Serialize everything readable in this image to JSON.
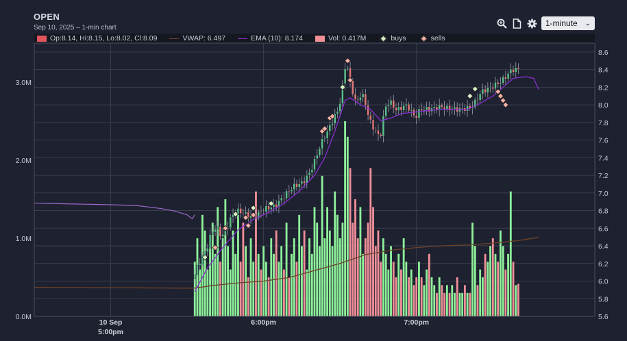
{
  "header": {
    "title": "OPEN",
    "subtitle": "Sep 10, 2025 – 1-min chart"
  },
  "toolbar": {
    "zoom_icon": "magnifier-plus-icon",
    "page_icon": "document-icon",
    "settings_icon": "gear-icon",
    "interval_value": "1-minute",
    "interval_chevron": "⌄"
  },
  "legend": {
    "ohlc": "Op:8.14, Hi:8.15, Lo:8.02, Cl:8.09",
    "vwap": "VWAP: 6.497",
    "ema": "EMA (10): 8.174",
    "vol": "Vol: 0.417M",
    "buys": "buys",
    "sells": "sells"
  },
  "colors": {
    "background": "#1e2130",
    "up": "#5cbd8c",
    "down": "#e0787a",
    "vol_up": "#8ef19a",
    "vol_down": "#f08f98",
    "ema": "#8a2fd0",
    "vwap": "#6e4228",
    "prevol": "#9a6ac8",
    "buy_marker": "#d8f2c8",
    "sell_marker": "#f3b0a6",
    "legend_red": "#e0565c"
  },
  "chart_data": {
    "type": "candlestick",
    "title": "OPEN",
    "subtitle": "Sep 10, 2025 – 1-min chart",
    "interval": "1-minute",
    "price_axis": {
      "side": "right",
      "ylim": [
        5.6,
        8.7
      ],
      "ticks": [
        "8.6",
        "8.4",
        "8.2",
        "8.0",
        "7.8",
        "7.6",
        "7.4",
        "7.2",
        "7.0",
        "6.8",
        "6.6",
        "6.4",
        "6.2",
        "6.0",
        "5.8",
        "5.6"
      ]
    },
    "volume_axis": {
      "side": "left",
      "ylim_millions": [
        0,
        3.5
      ],
      "ticks": [
        "3.0M",
        "2.0M",
        "1.0M",
        "0.0M"
      ]
    },
    "x_axis": {
      "minute_range": [
        -60,
        160
      ],
      "ticks": [
        {
          "minute": -30,
          "label": "10 Sep",
          "label2": "5:00pm"
        },
        {
          "minute": 30,
          "label": "6:00pm",
          "label2": ""
        },
        {
          "minute": 90,
          "label": "7:00pm",
          "label2": ""
        }
      ]
    },
    "grid": true,
    "legend_position": "top-left",
    "premarket_volume": [
      [
        -60,
        1.45
      ],
      [
        -45,
        1.44
      ],
      [
        -30,
        1.43
      ],
      [
        -20,
        1.42
      ],
      [
        -10,
        1.38
      ],
      [
        -5,
        1.35
      ],
      [
        0,
        1.3
      ],
      [
        2,
        1.25
      ],
      [
        3,
        1.3
      ]
    ],
    "price_path": [
      [
        3,
        6.03
      ],
      [
        5,
        6.2
      ],
      [
        8,
        6.35
      ],
      [
        10,
        6.55
      ],
      [
        12,
        6.62
      ],
      [
        14,
        6.5
      ],
      [
        16,
        6.6
      ],
      [
        18,
        6.74
      ],
      [
        20,
        6.8
      ],
      [
        22,
        6.78
      ],
      [
        24,
        6.75
      ],
      [
        26,
        6.72
      ],
      [
        28,
        6.75
      ],
      [
        30,
        6.8
      ],
      [
        32,
        6.83
      ],
      [
        35,
        6.85
      ],
      [
        38,
        6.95
      ],
      [
        42,
        7.07
      ],
      [
        46,
        7.12
      ],
      [
        48,
        7.2
      ],
      [
        50,
        7.32
      ],
      [
        52,
        7.48
      ],
      [
        54,
        7.62
      ],
      [
        56,
        7.72
      ],
      [
        58,
        7.85
      ],
      [
        60,
        7.95
      ],
      [
        62,
        8.3
      ],
      [
        63,
        8.55
      ],
      [
        64,
        8.3
      ],
      [
        66,
        8.1
      ],
      [
        67,
        8.0
      ],
      [
        69,
        8.15
      ],
      [
        71,
        7.95
      ],
      [
        73,
        7.75
      ],
      [
        75,
        7.7
      ],
      [
        76,
        7.58
      ],
      [
        78,
        7.95
      ],
      [
        80,
        8.05
      ],
      [
        82,
        7.95
      ],
      [
        84,
        7.95
      ],
      [
        86,
        8.0
      ],
      [
        88,
        7.95
      ],
      [
        90,
        7.85
      ],
      [
        92,
        7.95
      ],
      [
        96,
        7.95
      ],
      [
        100,
        7.98
      ],
      [
        104,
        7.95
      ],
      [
        108,
        7.95
      ],
      [
        112,
        7.97
      ],
      [
        114,
        8.05
      ],
      [
        116,
        8.15
      ],
      [
        120,
        8.2
      ],
      [
        124,
        8.27
      ],
      [
        128,
        8.4
      ],
      [
        131,
        8.4
      ],
      [
        133,
        8.3
      ],
      [
        135,
        8.2
      ],
      [
        136,
        8.0
      ],
      [
        137,
        7.95
      ],
      [
        138,
        8.09
      ]
    ],
    "ema10": [
      [
        3,
        5.88
      ],
      [
        8,
        6.15
      ],
      [
        14,
        6.38
      ],
      [
        20,
        6.58
      ],
      [
        26,
        6.7
      ],
      [
        32,
        6.78
      ],
      [
        38,
        6.88
      ],
      [
        44,
        7.02
      ],
      [
        50,
        7.2
      ],
      [
        54,
        7.4
      ],
      [
        58,
        7.7
      ],
      [
        62,
        8.05
      ],
      [
        64,
        8.08
      ],
      [
        68,
        8.0
      ],
      [
        72,
        7.95
      ],
      [
        76,
        7.82
      ],
      [
        80,
        7.85
      ],
      [
        84,
        7.9
      ],
      [
        90,
        7.92
      ],
      [
        100,
        7.95
      ],
      [
        110,
        7.95
      ],
      [
        114,
        8.0
      ],
      [
        120,
        8.1
      ],
      [
        128,
        8.3
      ],
      [
        133,
        8.32
      ],
      [
        136,
        8.3
      ],
      [
        138,
        8.174
      ]
    ],
    "vwap": [
      [
        -60,
        5.93
      ],
      [
        0,
        5.92
      ],
      [
        3,
        5.92
      ],
      [
        10,
        5.95
      ],
      [
        20,
        5.98
      ],
      [
        30,
        6.0
      ],
      [
        40,
        6.04
      ],
      [
        50,
        6.12
      ],
      [
        60,
        6.2
      ],
      [
        70,
        6.3
      ],
      [
        80,
        6.35
      ],
      [
        90,
        6.38
      ],
      [
        100,
        6.4
      ],
      [
        110,
        6.41
      ],
      [
        120,
        6.43
      ],
      [
        130,
        6.46
      ],
      [
        138,
        6.497
      ]
    ],
    "volume_m": [
      0.7,
      1.0,
      0.6,
      1.3,
      1.1,
      0.6,
      0.9,
      1.2,
      0.8,
      1.4,
      0.7,
      1.0,
      1.5,
      0.9,
      0.6,
      1.1,
      0.8,
      1.3,
      0.7,
      1.2,
      0.9,
      0.5,
      1.0,
      0.7,
      1.6,
      0.8,
      0.6,
      0.9,
      0.7,
      0.5,
      1.0,
      0.8,
      1.1,
      0.7,
      0.9,
      0.6,
      1.2,
      0.5,
      0.8,
      1.0,
      0.7,
      1.3,
      0.9,
      1.1,
      0.6,
      1.0,
      0.8,
      1.4,
      1.2,
      0.9,
      1.8,
      1.0,
      1.4,
      1.1,
      0.9,
      1.6,
      1.3,
      1.0,
      1.2,
      2.5,
      2.3,
      1.9,
      1.2,
      1.5,
      1.0,
      1.4,
      0.8,
      1.0,
      1.2,
      1.9,
      1.4,
      0.9,
      1.1,
      0.7,
      1.0,
      0.8,
      0.6,
      0.9,
      0.7,
      0.5,
      0.8,
      0.6,
      1.0,
      0.7,
      0.5,
      0.6,
      0.4,
      0.5,
      0.7,
      0.5,
      0.4,
      0.6,
      0.8,
      0.5,
      0.4,
      0.3,
      0.5,
      0.4,
      0.3,
      0.4,
      0.3,
      0.4,
      0.3,
      0.5,
      0.3,
      0.3,
      0.4,
      0.3,
      0.3,
      1.2,
      0.9,
      0.4,
      0.6,
      0.5,
      0.8,
      0.7,
      0.9,
      1.0,
      0.8,
      0.7,
      1.1,
      0.9,
      0.6,
      0.8,
      1.6,
      0.7,
      0.4,
      0.417
    ],
    "buys": [
      [
        7,
        6.27
      ],
      [
        19,
        6.76
      ],
      [
        26,
        6.83
      ],
      [
        33,
        6.88
      ],
      [
        61,
        8.2
      ],
      [
        111,
        8.1
      ],
      [
        113,
        8.18
      ]
    ],
    "sells": [
      [
        11,
        6.38
      ],
      [
        15,
        6.6
      ],
      [
        23,
        6.72
      ],
      [
        24,
        6.63
      ],
      [
        26,
        6.75
      ],
      [
        53,
        7.7
      ],
      [
        54,
        7.73
      ],
      [
        56,
        7.85
      ],
      [
        57,
        7.87
      ],
      [
        63,
        8.5
      ],
      [
        64,
        8.28
      ],
      [
        122,
        8.15
      ],
      [
        123,
        8.1
      ],
      [
        124,
        8.05
      ],
      [
        125,
        8.0
      ]
    ]
  }
}
